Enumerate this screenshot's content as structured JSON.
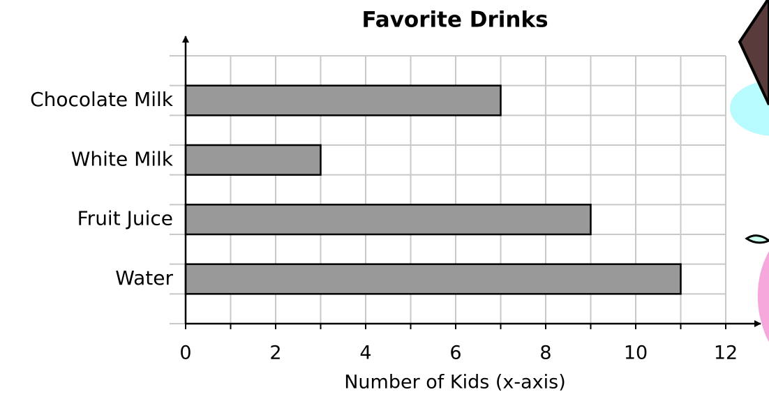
{
  "chart_data": {
    "type": "barh",
    "title": "Favorite Drinks",
    "categories": [
      "Chocolate Milk",
      "White Milk",
      "Fruit Juice",
      "Water"
    ],
    "values": [
      7,
      3,
      9,
      11
    ],
    "color": "#999999",
    "x_label": "Number of Kids (x-axis)",
    "xlim": [
      0,
      12
    ],
    "xticks": [
      0,
      2,
      4,
      6,
      8,
      10,
      12
    ],
    "grid": true
  }
}
